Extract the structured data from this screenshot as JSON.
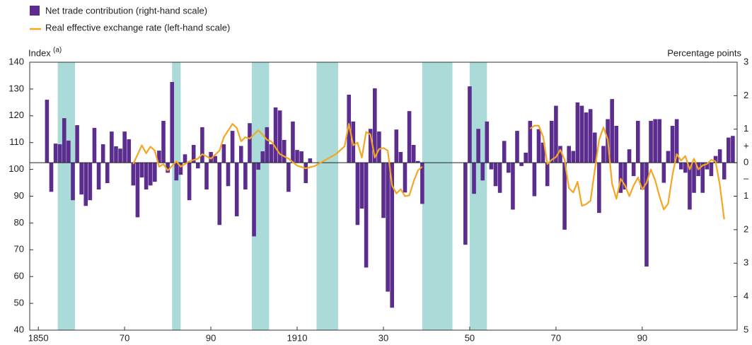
{
  "chart_data": {
    "type": "bar",
    "y_label": "Index",
    "y_label_note": "(a)",
    "y2_label": "Percentage points",
    "sign_plus": "+",
    "sign_minus": "–",
    "xlim": [
      1848,
      2012
    ],
    "xticks": [
      1850,
      {
        "value": 1870,
        "label": "70"
      },
      {
        "value": 1890,
        "label": "90"
      },
      1910,
      {
        "value": 1930,
        "label": "30"
      },
      {
        "value": 1950,
        "label": "50"
      },
      {
        "value": 1970,
        "label": "70"
      },
      {
        "value": 1990,
        "label": "90"
      }
    ],
    "ylim": [
      40,
      140
    ],
    "yticks": [
      40,
      50,
      60,
      70,
      80,
      90,
      100,
      110,
      120,
      130,
      140
    ],
    "y2lim": [
      -5,
      3
    ],
    "y2ticks": [
      3,
      2,
      1,
      0,
      {
        "value": -1,
        "label": "1"
      },
      {
        "value": -2,
        "label": "2"
      },
      {
        "value": -3,
        "label": "3"
      },
      {
        "value": -4,
        "label": "4"
      },
      {
        "value": -5,
        "label": "5"
      }
    ],
    "shade_color": "#aadbd8",
    "shaded_periods": [
      [
        1854.5,
        1858.5
      ],
      [
        1881,
        1883
      ],
      [
        1899.5,
        1903.5
      ],
      [
        1914.5,
        1919.5
      ],
      [
        1939,
        1946
      ],
      [
        1950,
        1954
      ]
    ],
    "series": [
      {
        "name": "Net trade contribution (right-hand scale)",
        "type": "bar",
        "axis": "y2",
        "color": "#5b2d8e",
        "x": [
          1852,
          1853,
          1854,
          1855,
          1856,
          1857,
          1858,
          1859,
          1860,
          1861,
          1862,
          1863,
          1864,
          1865,
          1866,
          1867,
          1868,
          1869,
          1870,
          1871,
          1872,
          1873,
          1874,
          1875,
          1876,
          1877,
          1878,
          1879,
          1880,
          1881,
          1882,
          1883,
          1884,
          1885,
          1886,
          1887,
          1888,
          1889,
          1890,
          1891,
          1892,
          1893,
          1894,
          1895,
          1896,
          1897,
          1898,
          1899,
          1900,
          1901,
          1902,
          1903,
          1904,
          1905,
          1906,
          1907,
          1908,
          1909,
          1910,
          1911,
          1912,
          1913,
          1922,
          1923,
          1924,
          1925,
          1926,
          1927,
          1928,
          1929,
          1930,
          1931,
          1932,
          1933,
          1934,
          1935,
          1936,
          1937,
          1938,
          1939,
          1949,
          1950,
          1951,
          1952,
          1953,
          1954,
          1955,
          1956,
          1957,
          1958,
          1959,
          1960,
          1961,
          1962,
          1963,
          1964,
          1965,
          1966,
          1967,
          1968,
          1969,
          1970,
          1971,
          1972,
          1973,
          1974,
          1975,
          1976,
          1977,
          1978,
          1979,
          1980,
          1981,
          1982,
          1983,
          1984,
          1985,
          1986,
          1987,
          1988,
          1989,
          1990,
          1991,
          1992,
          1993,
          1994,
          1995,
          1996,
          1997,
          1998,
          1999,
          2000,
          2001,
          2002,
          2003,
          2004,
          2005,
          2006,
          2007,
          2008,
          2009,
          2010,
          2011
        ],
        "values": [
          1.88,
          -0.87,
          0.57,
          0.55,
          1.33,
          0.66,
          -1.12,
          1.12,
          -0.95,
          -1.29,
          -1.12,
          1.04,
          -0.8,
          0.55,
          -0.61,
          0.93,
          0.49,
          0.42,
          0.93,
          0.7,
          -0.68,
          -1.63,
          -0.44,
          -0.8,
          -0.68,
          -0.57,
          0.36,
          1.25,
          -0.3,
          2.41,
          -0.53,
          -0.36,
          0.25,
          -1.12,
          0.53,
          -0.17,
          1.06,
          -0.8,
          0.32,
          0.2,
          -1.86,
          0.55,
          -0.7,
          0.95,
          -1.6,
          0.5,
          -0.8,
          1.18,
          -2.2,
          -0.21,
          0.34,
          1.06,
          0.55,
          1.65,
          1.56,
          0.68,
          -0.87,
          1.23,
          0.38,
          0.34,
          -0.61,
          0.13,
          2.03,
          1.23,
          -1.86,
          -1.37,
          -3.13,
          1.01,
          2.22,
          0.93,
          -1.65,
          -3.85,
          -4.33,
          0.99,
          0.32,
          -0.89,
          1.54,
          0.53,
          0.05,
          -1.23,
          -2.45,
          2.28,
          -0.93,
          1.01,
          -0.53,
          1.23,
          -0.2,
          -0.7,
          -0.9,
          0.65,
          -0.3,
          -1.4,
          0.95,
          -0.1,
          0.3,
          1.25,
          -1.0,
          1.0,
          0.6,
          -0.7,
          1.25,
          1.7,
          0.5,
          -2.0,
          0.5,
          0.35,
          1.8,
          1.7,
          1.5,
          1.6,
          0.9,
          -1.5,
          0.5,
          1.3,
          1.9,
          1.1,
          -0.9,
          -0.8,
          0.4,
          -0.4,
          1.25,
          -0.8,
          -3.1,
          1.25,
          1.3,
          1.3,
          -0.6,
          0.35,
          1.1,
          1.3,
          -0.2,
          -0.3,
          -1.4,
          -0.9,
          -0.4,
          -0.9,
          -0.2,
          -0.4,
          0.2,
          0.4,
          -0.5,
          0.75,
          0.8
        ]
      },
      {
        "name": "Real effective exchange rate (left-hand scale)",
        "type": "line",
        "color": "#f5a623",
        "x": [
          1872,
          1874,
          1875,
          1876,
          1877,
          1878,
          1879,
          1880,
          1882,
          1883,
          1884,
          1885,
          1887,
          1888,
          1890,
          1892,
          1893,
          1895,
          1896,
          1897,
          1898,
          1899,
          1901,
          1902,
          1903,
          1904,
          1906,
          1908,
          1910,
          1912,
          1914,
          1916,
          1919,
          1921,
          1922,
          1923,
          1924,
          1925,
          1926,
          1927,
          1928,
          1929,
          1930,
          1931,
          1932,
          1933,
          1934,
          1935,
          1936,
          1937,
          1938,
          1939,
          1950,
          1964,
          1965,
          1966,
          1967,
          1968,
          1969,
          1970,
          1971,
          1972,
          1973,
          1974,
          1975,
          1976,
          1977,
          1978,
          1979,
          1980,
          1981,
          1982,
          1983,
          1984,
          1985,
          1986,
          1987,
          1988,
          1989,
          1990,
          1991,
          1992,
          1993,
          1994,
          1995,
          1996,
          1997,
          1998,
          1999,
          2000,
          2001,
          2002,
          2003,
          2004,
          2005,
          2006,
          2007,
          2008,
          2009
        ],
        "values": [
          102,
          109,
          106,
          108.5,
          107,
          101,
          102,
          99.6,
          103,
          101,
          102,
          103,
          104,
          105.7,
          104,
          107,
          112,
          117,
          115.5,
          110.5,
          112,
          111.5,
          114.6,
          113,
          111,
          110.5,
          105.7,
          104,
          101.4,
          100.4,
          101.2,
          103,
          105.7,
          108.6,
          117,
          109,
          110,
          104.4,
          114,
          113,
          104.4,
          107.6,
          108,
          107,
          94,
          91,
          92.6,
          90,
          90.3,
          95.5,
          99.6,
          101,
          null,
          115.2,
          116.3,
          116.3,
          112.3,
          102,
          103.6,
          104.6,
          107.3,
          103.6,
          93,
          91.4,
          95.4,
          86.4,
          87,
          88.3,
          99.9,
          111,
          115.7,
          111.2,
          94.6,
          89,
          96.5,
          94,
          90,
          94,
          97,
          92.5,
          95,
          100,
          96,
          90,
          85,
          87.2,
          97.8,
          105.7,
          103.3,
          105,
          100,
          104,
          100,
          101.5,
          102,
          103.6,
          103,
          94,
          81.4
        ]
      }
    ]
  }
}
